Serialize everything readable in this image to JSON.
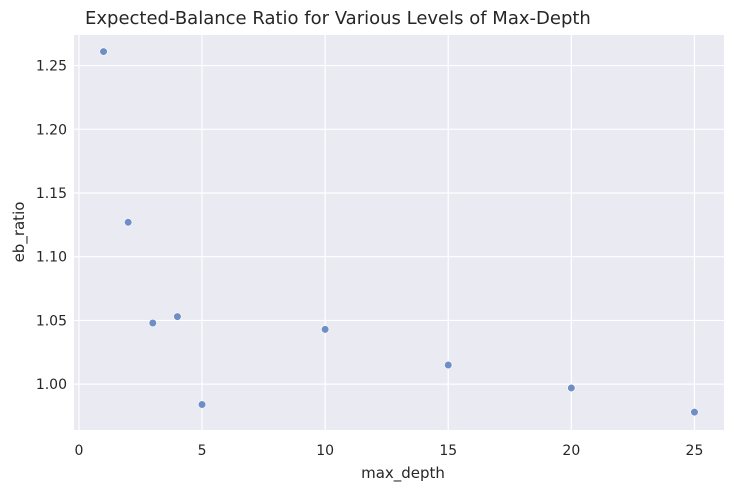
{
  "chart_data": {
    "type": "scatter",
    "title": "Expected-Balance Ratio for Various Levels of Max-Depth",
    "xlabel": "max_depth",
    "ylabel": "eb_ratio",
    "x": [
      1,
      2,
      3,
      4,
      5,
      10,
      15,
      20,
      25
    ],
    "y": [
      1.261,
      1.127,
      1.048,
      1.053,
      0.984,
      1.043,
      1.015,
      0.997,
      0.978
    ],
    "xlim": [
      -0.2,
      26.2
    ],
    "ylim": [
      0.964,
      1.274
    ],
    "xticks": [
      0,
      5,
      10,
      15,
      20,
      25
    ],
    "xtick_labels": [
      "0",
      "5",
      "10",
      "15",
      "20",
      "25"
    ],
    "yticks": [
      1.0,
      1.05,
      1.1,
      1.15,
      1.2,
      1.25
    ],
    "ytick_labels": [
      "1.00",
      "1.05",
      "1.10",
      "1.15",
      "1.20",
      "1.25"
    ],
    "grid": true,
    "colors": {
      "point": "#6f8ec6",
      "background": "#eaeaf2",
      "grid": "#ffffff",
      "text": "#262626"
    }
  }
}
